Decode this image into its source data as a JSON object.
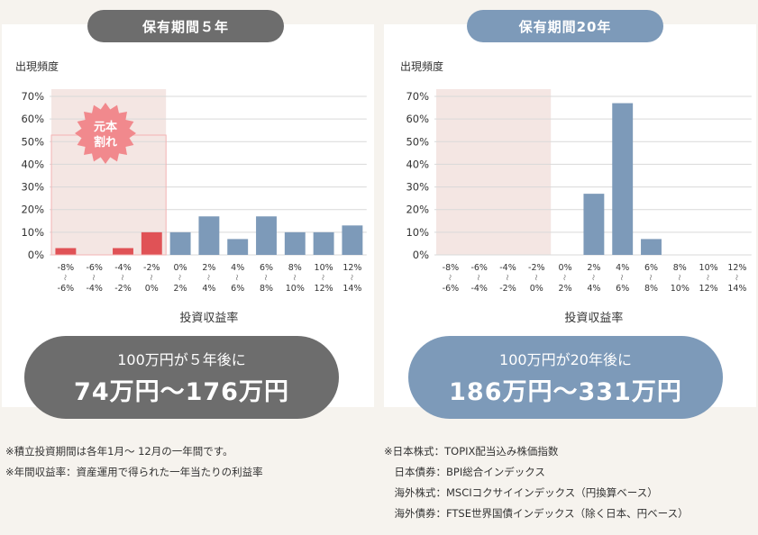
{
  "colors": {
    "bar_gain": "#7d9ab9",
    "bar_loss": "#e05256",
    "loss_zone": "#f4e6e3",
    "loss_badge": "#f1898d",
    "pill_5y": "#6d6d6d",
    "pill_20y": "#7d9ab9"
  },
  "panels": [
    {
      "title": "保有期間５年",
      "result_sub": "100万円が５年後に",
      "result_main": "74万円〜176万円"
    },
    {
      "title": "保有期間20年",
      "result_sub": "100万円が20年後に",
      "result_main": "186万円〜331万円"
    }
  ],
  "loss_badge_text": [
    "元本",
    "割れ"
  ],
  "chart_data": [
    {
      "type": "bar",
      "ylabel": "出現頻度",
      "xlabel": "投資収益率",
      "ylim": [
        0,
        70
      ],
      "yticks": [
        "0%",
        "10%",
        "20%",
        "30%",
        "40%",
        "50%",
        "60%",
        "70%"
      ],
      "categories": [
        [
          "-8%",
          "-6%"
        ],
        [
          "-6%",
          "-4%"
        ],
        [
          "-4%",
          "-2%"
        ],
        [
          "-2%",
          "0%"
        ],
        [
          "0%",
          "2%"
        ],
        [
          "2%",
          "4%"
        ],
        [
          "4%",
          "6%"
        ],
        [
          "6%",
          "8%"
        ],
        [
          "8%",
          "10%"
        ],
        [
          "10%",
          "12%"
        ],
        [
          "12%",
          "14%"
        ]
      ],
      "values": [
        3,
        0,
        3,
        10,
        10,
        17,
        7,
        17,
        10,
        10,
        13
      ],
      "loss_categories": 4,
      "legend": "none",
      "grid": "horizontal"
    },
    {
      "type": "bar",
      "ylabel": "出現頻度",
      "xlabel": "投資収益率",
      "ylim": [
        0,
        70
      ],
      "yticks": [
        "0%",
        "10%",
        "20%",
        "30%",
        "40%",
        "50%",
        "60%",
        "70%"
      ],
      "categories": [
        [
          "-8%",
          "-6%"
        ],
        [
          "-6%",
          "-4%"
        ],
        [
          "-4%",
          "-2%"
        ],
        [
          "-2%",
          "0%"
        ],
        [
          "0%",
          "2%"
        ],
        [
          "2%",
          "4%"
        ],
        [
          "4%",
          "6%"
        ],
        [
          "6%",
          "8%"
        ],
        [
          "8%",
          "10%"
        ],
        [
          "10%",
          "12%"
        ],
        [
          "12%",
          "14%"
        ]
      ],
      "values": [
        0,
        0,
        0,
        0,
        0,
        27,
        67,
        7,
        0,
        0,
        0
      ],
      "loss_categories": 4,
      "legend": "none",
      "grid": "horizontal"
    }
  ],
  "notes_left": [
    "※積立投資期間は各年1月〜 12月の一年間です。",
    "※年間収益率：資産運用で得られた一年当たりの利益率"
  ],
  "notes_right": [
    "※日本株式：TOPIX配当込み株価指数",
    "　日本債券：BPI総合インデックス",
    "　海外株式：MSCIコクサイインデックス（円換算ベース）",
    "　海外債券：FTSE世界国債インデックス（除く日本、円ベース）"
  ]
}
